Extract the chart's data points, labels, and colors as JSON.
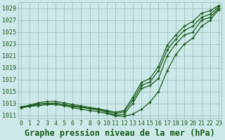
{
  "title": "Graphe pression niveau de la mer (hPa)",
  "hours": [
    0,
    1,
    2,
    3,
    4,
    5,
    6,
    7,
    8,
    9,
    10,
    11,
    12,
    13,
    14,
    15,
    16,
    17,
    18,
    19,
    20,
    21,
    22,
    23
  ],
  "line_low": [
    1012.4,
    1012.6,
    1012.8,
    1013.0,
    1013.0,
    1012.8,
    1012.5,
    1012.3,
    1012.1,
    1011.9,
    1011.5,
    1011.0,
    1011.2,
    1013.0,
    1015.5,
    1016.0,
    1017.2,
    1021.0,
    1023.0,
    1024.5,
    1025.0,
    1027.0,
    1027.5,
    1029.0
  ],
  "line_mid": [
    1012.4,
    1012.6,
    1012.9,
    1013.0,
    1013.0,
    1012.8,
    1012.6,
    1012.4,
    1012.2,
    1012.0,
    1011.7,
    1011.3,
    1011.6,
    1013.5,
    1016.0,
    1016.6,
    1018.5,
    1022.0,
    1023.8,
    1025.3,
    1026.0,
    1027.5,
    1028.0,
    1029.3
  ],
  "line_high": [
    1012.4,
    1012.7,
    1013.1,
    1013.3,
    1013.3,
    1013.1,
    1012.8,
    1012.6,
    1012.3,
    1012.1,
    1011.8,
    1011.5,
    1011.8,
    1014.0,
    1016.5,
    1017.2,
    1019.2,
    1022.8,
    1024.5,
    1026.0,
    1026.8,
    1028.2,
    1028.6,
    1029.5
  ],
  "line_outlier": [
    1012.2,
    1012.5,
    1012.6,
    1012.8,
    1012.8,
    1012.6,
    1012.3,
    1012.0,
    1011.8,
    1011.6,
    1011.3,
    1010.9,
    1010.8,
    1011.2,
    1012.0,
    1013.2,
    1015.0,
    1018.5,
    1021.2,
    1023.0,
    1024.0,
    1026.0,
    1027.0,
    1028.8
  ],
  "ylim_min": 1010.5,
  "ylim_max": 1030.0,
  "yticks": [
    1011,
    1013,
    1015,
    1017,
    1019,
    1021,
    1023,
    1025,
    1027,
    1029
  ],
  "bg_color": "#cce8e8",
  "grid_color": "#99bbbb",
  "line_color": "#1a5c1a",
  "title_fontsize": 8.5,
  "tick_fontsize": 6
}
